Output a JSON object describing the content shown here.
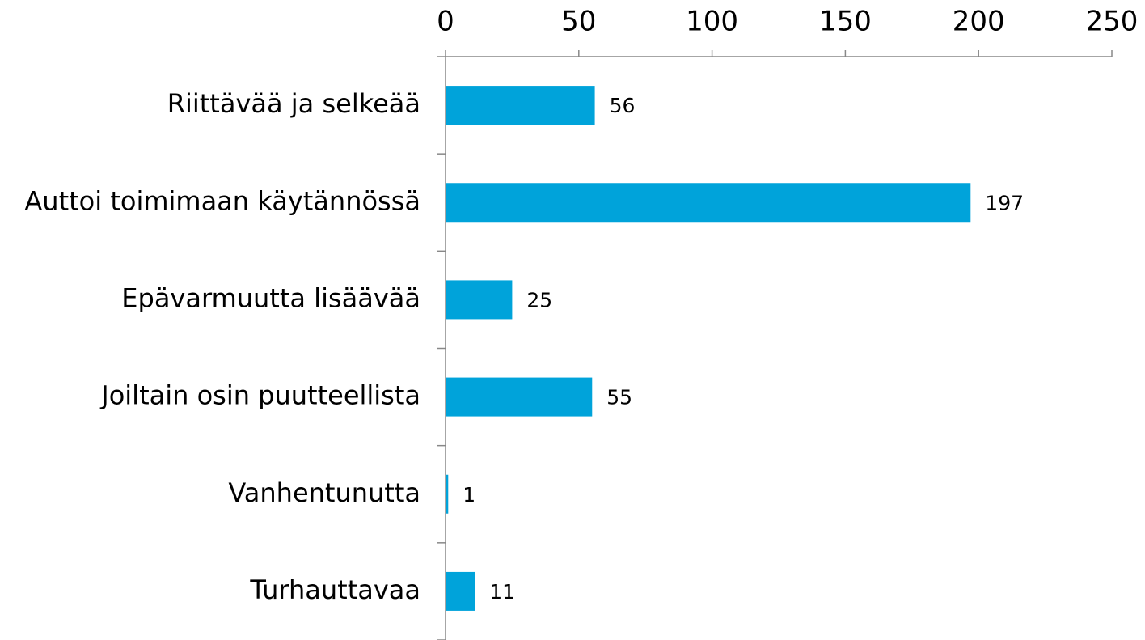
{
  "chart_data": {
    "type": "bar",
    "orientation": "horizontal",
    "axis_position": "top",
    "categories": [
      "Riittävää ja selkeää",
      "Auttoi toimimaan käytännössä",
      "Epävarmuutta lisäävää",
      "Joiltain osin puutteellista",
      "Vanhentunutta",
      "Turhauttavaa"
    ],
    "values": [
      56,
      197,
      25,
      55,
      1,
      11
    ],
    "color": "#00a3da",
    "xlim": [
      0,
      250
    ],
    "xticks": [
      0,
      50,
      100,
      150,
      200,
      250
    ],
    "grid": false
  }
}
